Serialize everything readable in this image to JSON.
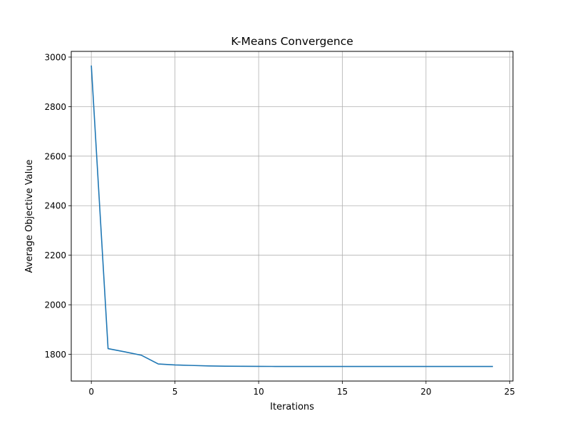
{
  "chart_data": {
    "type": "line",
    "title": "K-Means Convergence",
    "xlabel": "Iterations",
    "ylabel": "Average Objective Value",
    "xlim": [
      -1.2,
      25.2
    ],
    "ylim": [
      1692,
      3023
    ],
    "x_ticks": [
      0,
      5,
      10,
      15,
      20,
      25
    ],
    "y_ticks": [
      1800,
      2000,
      2200,
      2400,
      2600,
      2800,
      3000
    ],
    "grid": true,
    "colors": {
      "line": "#1f77b4",
      "grid": "#b0b0b0",
      "axis": "#000000"
    },
    "series": [
      {
        "x": [
          0,
          1,
          2,
          3,
          4,
          5,
          6,
          7,
          8,
          9,
          10,
          11,
          12,
          13,
          14,
          15,
          16,
          17,
          18,
          19,
          20,
          21,
          22,
          23,
          24
        ],
        "values": [
          2966,
          1823,
          1810,
          1796,
          1761,
          1757,
          1755,
          1753,
          1752,
          1751.5,
          1751.2,
          1751,
          1751,
          1751,
          1751,
          1751,
          1751,
          1751,
          1751,
          1751,
          1751,
          1751,
          1751,
          1751,
          1751
        ]
      }
    ]
  }
}
